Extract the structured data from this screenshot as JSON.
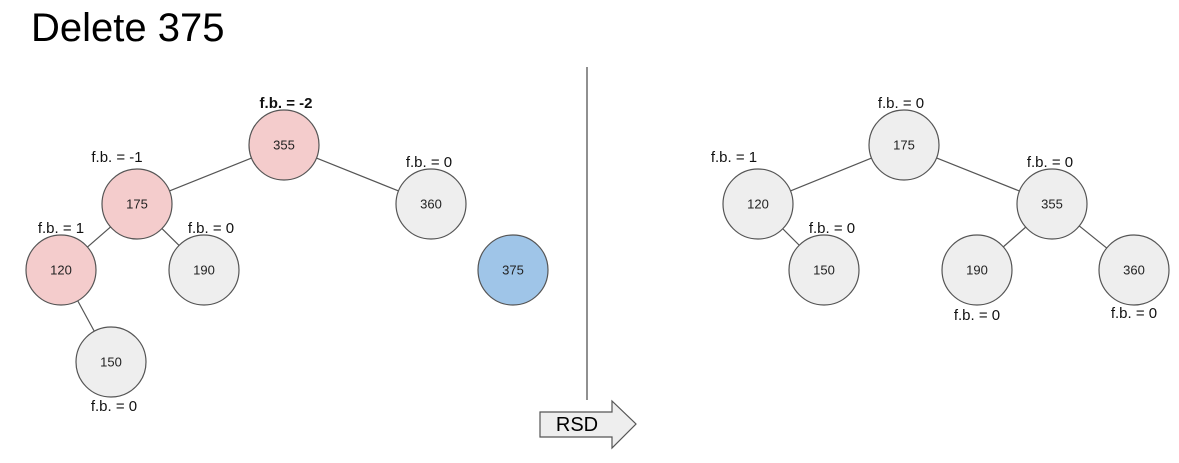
{
  "title": "Delete 375",
  "colors": {
    "normal_fill": "#eeeeee",
    "critical_fill": "#f4cccc",
    "deleted_fill": "#9fc5e8",
    "stroke": "#555555",
    "edge": "#555555",
    "alert_text": "#cc0000"
  },
  "operation": {
    "label": "RSD"
  },
  "trees": [
    {
      "id": "before",
      "nodes": [
        {
          "id": "b355",
          "value": "355",
          "fb": "f.b. = -2",
          "state": "critical",
          "fb_alert": true
        },
        {
          "id": "b175",
          "value": "175",
          "fb": "f.b. = -1",
          "state": "critical"
        },
        {
          "id": "b360",
          "value": "360",
          "fb": "f.b. = 0",
          "state": "normal"
        },
        {
          "id": "b120",
          "value": "120",
          "fb": "f.b. = 1",
          "state": "critical"
        },
        {
          "id": "b190",
          "value": "190",
          "fb": "f.b. = 0",
          "state": "normal"
        },
        {
          "id": "b150",
          "value": "150",
          "fb": "f.b. = 0",
          "state": "normal"
        },
        {
          "id": "b375",
          "value": "375",
          "fb": "",
          "state": "deleted"
        }
      ],
      "edges": [
        [
          "b355",
          "b175"
        ],
        [
          "b355",
          "b360"
        ],
        [
          "b175",
          "b120"
        ],
        [
          "b175",
          "b190"
        ],
        [
          "b120",
          "b150"
        ]
      ]
    },
    {
      "id": "after",
      "nodes": [
        {
          "id": "a175",
          "value": "175",
          "fb": "f.b. = 0",
          "state": "normal"
        },
        {
          "id": "a120",
          "value": "120",
          "fb": "f.b. = 1",
          "state": "normal"
        },
        {
          "id": "a355",
          "value": "355",
          "fb": "f.b. = 0",
          "state": "normal"
        },
        {
          "id": "a150",
          "value": "150",
          "fb": "f.b. = 0",
          "state": "normal"
        },
        {
          "id": "a190",
          "value": "190",
          "fb": "f.b. = 0",
          "state": "normal"
        },
        {
          "id": "a360",
          "value": "360",
          "fb": "f.b. = 0",
          "state": "normal"
        }
      ],
      "edges": [
        [
          "a175",
          "a120"
        ],
        [
          "a175",
          "a355"
        ],
        [
          "a120",
          "a150"
        ],
        [
          "a355",
          "a190"
        ],
        [
          "a355",
          "a360"
        ]
      ]
    }
  ]
}
